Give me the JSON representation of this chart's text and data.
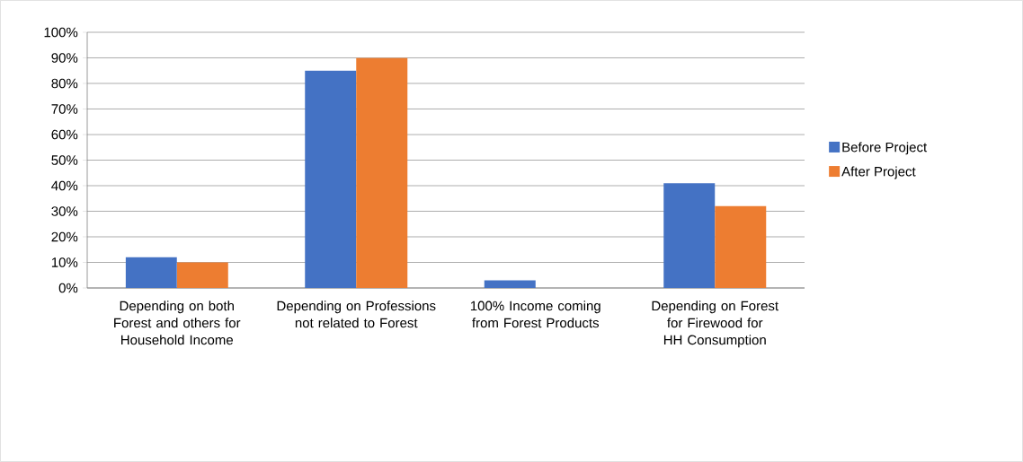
{
  "chart_data": {
    "type": "bar",
    "categories": [
      "Depending on both Forest and others for Household Income",
      "Depending on Professions not related to Forest",
      "100% Income coming from Forest Products",
      "Depending on Forest for Firewood for HH Consumption"
    ],
    "series": [
      {
        "name": "Before Project",
        "color": "#4472c4",
        "values": [
          12,
          85,
          3,
          41
        ]
      },
      {
        "name": "After  Project",
        "color": "#ed7d31",
        "values": [
          10,
          90,
          0,
          32
        ]
      }
    ],
    "ylim": [
      0,
      100
    ],
    "yticks": [
      {
        "value": 0,
        "label": "0%"
      },
      {
        "value": 10,
        "label": "10%"
      },
      {
        "value": 20,
        "label": "20%"
      },
      {
        "value": 30,
        "label": "30%"
      },
      {
        "value": 40,
        "label": "40%"
      },
      {
        "value": 50,
        "label": "50%"
      },
      {
        "value": 60,
        "label": "60%"
      },
      {
        "value": 70,
        "label": "70%"
      },
      {
        "value": 80,
        "label": "80%"
      },
      {
        "value": 90,
        "label": "90%"
      },
      {
        "value": 100,
        "label": "100%"
      }
    ],
    "grid": "y",
    "legend": "right"
  }
}
